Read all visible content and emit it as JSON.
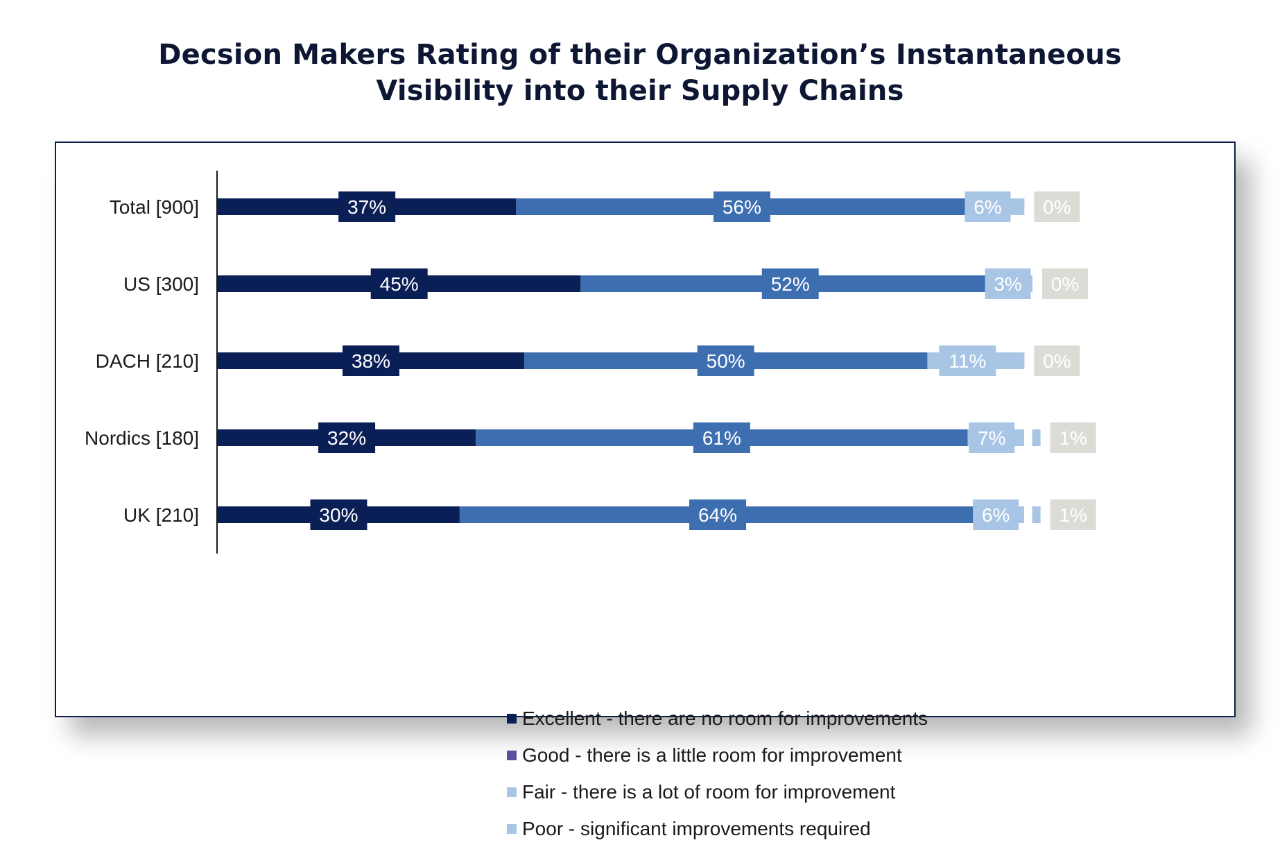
{
  "title_line1": "Decsion Makers Rating of their Organization’s Instantaneous",
  "title_line2": "Visibility into their Supply Chains",
  "chart_data": {
    "type": "bar",
    "orientation": "horizontal",
    "stacked": true,
    "categories": [
      "Total [900]",
      "US [300]",
      "DACH [210]",
      "Nordics [180]",
      "UK [210]"
    ],
    "series": [
      {
        "name": "Excellent - there are no room for improvements",
        "color": "#0b1f57",
        "label_color": "#0b1f57",
        "values": [
          37,
          45,
          38,
          32,
          30
        ],
        "labels": [
          "37%",
          "45%",
          "38%",
          "32%",
          "30%"
        ]
      },
      {
        "name": "Good - there is a little room for improvement",
        "color": "#3d6eb0",
        "label_color": "#3d6eb0",
        "legend_color": "#5b4e9e",
        "values": [
          56,
          52,
          50,
          61,
          64
        ],
        "labels": [
          "56%",
          "52%",
          "50%",
          "61%",
          "64%"
        ]
      },
      {
        "name": "Fair - there is a lot of room for improvement",
        "color": "#a8c5e6",
        "label_color": "#a8c5e6",
        "values": [
          6,
          3,
          11,
          7,
          6
        ],
        "labels": [
          "6%",
          "3%",
          "11%",
          "7%",
          "6%"
        ]
      },
      {
        "name": "Poor - significant improvements required",
        "color": "#a8c5e6",
        "label_color": "#dcdcd6",
        "values": [
          0,
          0,
          0,
          1,
          1
        ],
        "labels": [
          "0%",
          "0%",
          "0%",
          "1%",
          "1%"
        ]
      }
    ],
    "xlim": [
      0,
      100
    ],
    "grid": false,
    "legend_position": "bottom"
  }
}
